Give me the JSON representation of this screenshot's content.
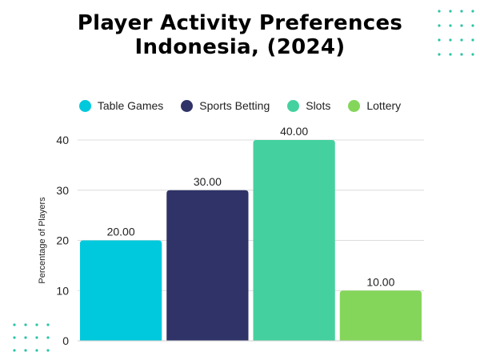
{
  "title_line1": "Player Activity Preferences",
  "title_line2": "Indonesia, (2024)",
  "legend": [
    {
      "label": "Table Games",
      "color": "#00c9dd"
    },
    {
      "label": "Sports Betting",
      "color": "#2f3367"
    },
    {
      "label": "Slots",
      "color": "#44d19f"
    },
    {
      "label": "Lottery",
      "color": "#84d65a"
    }
  ],
  "chart_data": {
    "type": "bar",
    "categories": [
      "Table Games",
      "Sports Betting",
      "Slots",
      "Lottery"
    ],
    "values": [
      20,
      30,
      40,
      10
    ],
    "data_labels": [
      "20.00",
      "30.00",
      "40.00",
      "10.00"
    ],
    "colors": [
      "#00c9dd",
      "#2f3367",
      "#44d19f",
      "#84d65a"
    ],
    "ylabel": "Percentage of Players",
    "xlabel": "",
    "ylim": [
      0,
      40
    ],
    "yticks": [
      0,
      10,
      20,
      30,
      40
    ],
    "grid": true,
    "legend_position": "top"
  }
}
